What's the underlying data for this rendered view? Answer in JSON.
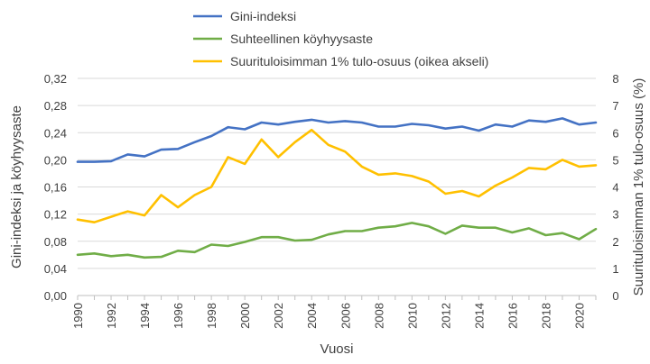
{
  "chart_data": {
    "type": "line",
    "title": "",
    "xlabel": "Vuosi",
    "ylabel": "Gini-indeksi ja köyhyysaste",
    "y2label": "Suurituloisimman 1% tulo-osuus (%)",
    "legend_position": "top-center",
    "grid": true,
    "x": [
      1990,
      1991,
      1992,
      1993,
      1994,
      1995,
      1996,
      1997,
      1998,
      1999,
      2000,
      2001,
      2002,
      2003,
      2004,
      2005,
      2006,
      2007,
      2008,
      2009,
      2010,
      2011,
      2012,
      2013,
      2014,
      2015,
      2016,
      2017,
      2018,
      2019,
      2020,
      2021
    ],
    "xlim": [
      1990,
      2021
    ],
    "x_ticks": [
      "1990",
      "1992",
      "1994",
      "1996",
      "1998",
      "2000",
      "2002",
      "2004",
      "2006",
      "2008",
      "2010",
      "2012",
      "2014",
      "2016",
      "2018",
      "2020"
    ],
    "ylim": [
      0,
      0.32
    ],
    "y_ticks": [
      "0,00",
      "0,04",
      "0,08",
      "0,12",
      "0,16",
      "0,20",
      "0,24",
      "0,28",
      "0,32"
    ],
    "y2lim": [
      0,
      8
    ],
    "y2_ticks": [
      "0",
      "1",
      "2",
      "3",
      "4",
      "5",
      "6",
      "7",
      "8"
    ],
    "series": [
      {
        "name": "Gini-indeksi",
        "axis": "left",
        "color": "#4472c4",
        "values": [
          0.197,
          0.197,
          0.198,
          0.208,
          0.205,
          0.215,
          0.216,
          0.226,
          0.235,
          0.248,
          0.245,
          0.255,
          0.252,
          0.256,
          0.259,
          0.255,
          0.257,
          0.255,
          0.249,
          0.249,
          0.253,
          0.251,
          0.246,
          0.249,
          0.243,
          0.252,
          0.249,
          0.258,
          0.256,
          0.261,
          0.252,
          0.255
        ]
      },
      {
        "name": "Suhteellinen köyhyysaste",
        "axis": "left",
        "color": "#70ad47",
        "values": [
          0.06,
          0.062,
          0.058,
          0.06,
          0.056,
          0.057,
          0.066,
          0.064,
          0.075,
          0.073,
          0.079,
          0.086,
          0.086,
          0.081,
          0.082,
          0.09,
          0.095,
          0.095,
          0.1,
          0.102,
          0.107,
          0.102,
          0.091,
          0.103,
          0.1,
          0.1,
          0.093,
          0.099,
          0.089,
          0.092,
          0.083,
          0.098
        ]
      },
      {
        "name": "Suurituloisimman 1% tulo-osuus (oikea akseli)",
        "axis": "right",
        "color": "#ffc000",
        "values": [
          2.8,
          2.7,
          2.9,
          3.1,
          2.95,
          3.7,
          3.25,
          3.7,
          4.0,
          5.1,
          4.85,
          5.75,
          5.1,
          5.65,
          6.1,
          5.55,
          5.3,
          4.75,
          4.45,
          4.5,
          4.4,
          4.2,
          3.75,
          3.85,
          3.65,
          4.05,
          4.35,
          4.7,
          4.65,
          5.0,
          4.75,
          4.8
        ]
      }
    ]
  }
}
